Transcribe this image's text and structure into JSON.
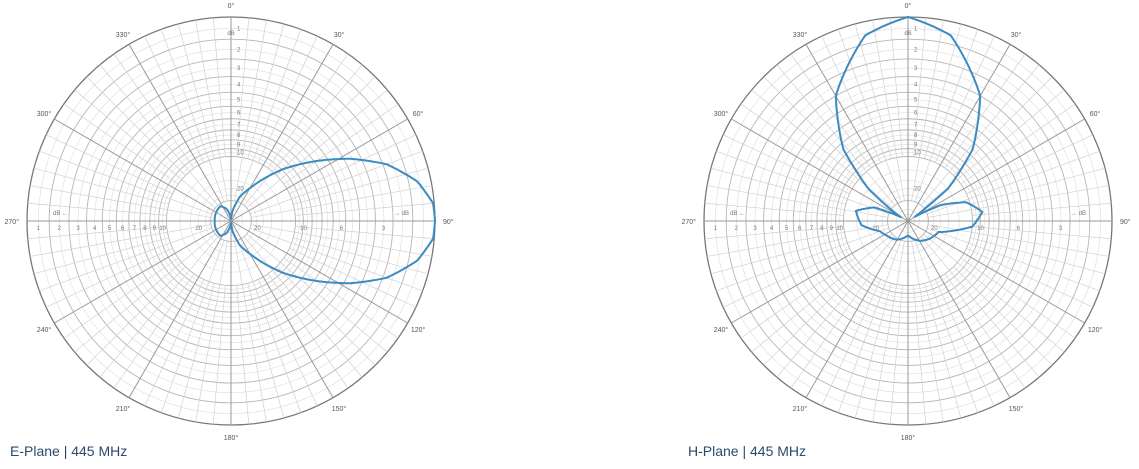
{
  "chart_data": [
    {
      "type": "polar-line",
      "title": "E-Plane | 445 MHz",
      "radial_unit": "dB",
      "radial_scale": "log (0 dB at rim)",
      "radial_tick_labels": [
        "1",
        "2",
        "3",
        "4",
        "5",
        "6",
        "7",
        "8",
        "9",
        "10",
        "20"
      ],
      "right_axis_tick_labels": [
        "20",
        "10",
        "6",
        "3"
      ],
      "angle_tick_labels": [
        "0°",
        "30°",
        "60°",
        "90°",
        "120°",
        "150°",
        "180°",
        "210°",
        "240°",
        "270°",
        "300°",
        "330°"
      ],
      "color": "#3b8bc2",
      "pattern": {
        "angle_deg": [
          0,
          10,
          20,
          30,
          45,
          55,
          62.5,
          70,
          78,
          85,
          90,
          95,
          102,
          110,
          117.5,
          125,
          135,
          150,
          160,
          170,
          180,
          190,
          200,
          215,
          240,
          270,
          300,
          325,
          340,
          350
        ],
        "gain_db": [
          -40,
          -25,
          -18,
          -14.6,
          -8.9,
          -5.8,
          -3.6,
          -1.8,
          -0.6,
          -0.05,
          0,
          -0.05,
          -0.6,
          -1.8,
          -3.6,
          -5.8,
          -8.9,
          -14.6,
          -18,
          -25,
          -40,
          -30,
          -24,
          -21,
          -21.5,
          -22,
          -21.5,
          -21,
          -24,
          -30
        ]
      }
    },
    {
      "type": "polar-line",
      "title": "H-Plane | 445 MHz",
      "radial_unit": "dB",
      "radial_scale": "log (0 dB at rim)",
      "radial_tick_labels": [
        "1",
        "2",
        "3",
        "4",
        "5",
        "6",
        "7",
        "8",
        "9",
        "10",
        "20"
      ],
      "right_axis_tick_labels": [
        "20",
        "10",
        "6",
        "3"
      ],
      "angle_tick_labels": [
        "0°",
        "30°",
        "60°",
        "90°",
        "120°",
        "150°",
        "180°",
        "210°",
        "240°",
        "270°",
        "300°",
        "330°"
      ],
      "color": "#3b8bc2",
      "pattern": {
        "angle_deg": [
          0,
          13,
          30,
          42,
          51,
          54,
          58,
          64,
          72,
          83,
          95,
          110,
          130,
          150,
          180,
          210,
          235,
          250,
          265,
          281,
          292,
          299,
          304,
          309,
          318,
          330,
          347
        ],
        "gain_db": [
          0,
          -0.6,
          -3,
          -6.5,
          -12,
          -20,
          -28,
          -15,
          -10.5,
          -8.7,
          -10,
          -16,
          -17.3,
          -19,
          -23,
          -19.5,
          -18,
          -16.7,
          -12.8,
          -11.7,
          -15,
          -28,
          -20,
          -12.2,
          -6.5,
          -3,
          -0.6
        ]
      }
    }
  ]
}
